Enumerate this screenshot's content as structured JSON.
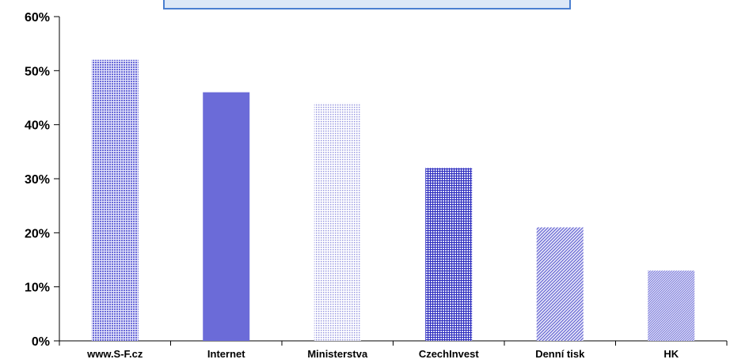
{
  "chart_data": {
    "type": "bar",
    "categories": [
      "www.S-F.cz",
      "Internet",
      "Ministerstva",
      "CzechInvest",
      "Denní tisk",
      "HK"
    ],
    "values": [
      52,
      46,
      44,
      32,
      21,
      13
    ],
    "ylim": [
      0,
      60
    ],
    "yticks": [
      0,
      10,
      20,
      30,
      40,
      50,
      60
    ],
    "ytick_labels": [
      "0%",
      "10%",
      "20%",
      "30%",
      "40%",
      "50%",
      "60%"
    ],
    "grid": false,
    "bar_styles": [
      "dots-dense",
      "solid",
      "dots-light",
      "grid-dark",
      "diagonal",
      "diagonal-fine"
    ],
    "colors": {
      "bar": "#6b6bd8",
      "bar_dark": "#3a3ac8",
      "bar_light": "#c8c8f0",
      "axis": "#000000",
      "title_box_border": "#4a7fd0",
      "title_box_fill": "#dce8f7"
    }
  }
}
